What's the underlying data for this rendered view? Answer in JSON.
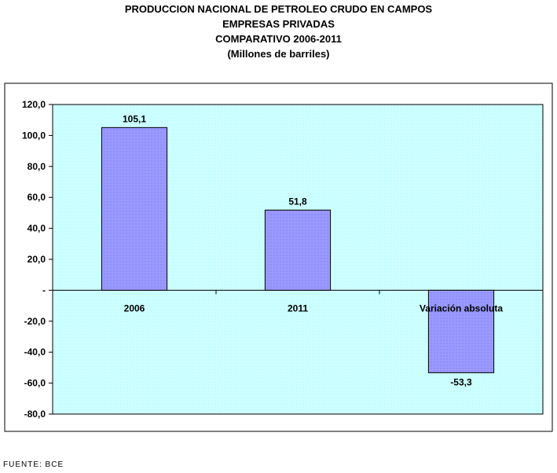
{
  "chart_data": {
    "type": "bar",
    "title": "PRODUCCION NACIONAL DE PETROLEO CRUDO EN CAMPOS",
    "title_lines": [
      "PRODUCCION NACIONAL DE PETROLEO CRUDO EN CAMPOS",
      "EMPRESAS PRIVADAS",
      "COMPARATIVO 2006-2011",
      "(Millones de barriles)"
    ],
    "categories": [
      "2006",
      "2011",
      "Variación absoluta"
    ],
    "values": [
      105.1,
      51.8,
      -53.3
    ],
    "value_labels": [
      "105,1",
      "51,8",
      "-53,3"
    ],
    "xlabel": "",
    "ylabel": "",
    "ylim": [
      -80,
      120
    ],
    "yticks": [
      120,
      100,
      80,
      60,
      40,
      20,
      0,
      -20,
      -40,
      -60,
      -80
    ],
    "ytick_labels": [
      "120,0",
      "100,0",
      "80,0",
      "60,0",
      "40,0",
      "20,0",
      "-",
      "-20,0",
      "-40,0",
      "-60,0",
      "-80,0"
    ],
    "grid": false,
    "legend": "none",
    "colors": {
      "plot_background": "#ccffff",
      "bar_fill": "#9999ff",
      "bar_stroke": "#000000"
    }
  },
  "footer": {
    "source": "FUENTE: BCE"
  }
}
